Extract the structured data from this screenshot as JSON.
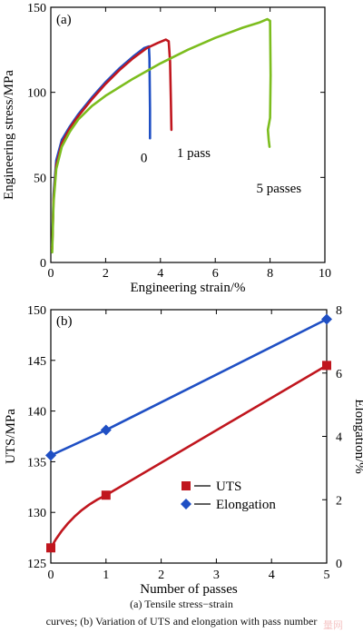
{
  "caption": {
    "line1": "(a) Tensile stress−strain",
    "line2": "curves; (b) Variation of UTS and elongation with pass number"
  },
  "watermark": "量网",
  "colors": {
    "blue": "#1f4fc4",
    "red": "#c0161e",
    "green": "#7cbd1e"
  },
  "chart_data": [
    {
      "type": "line",
      "panel_label": "(a)",
      "xlabel": "Engineering strain/%",
      "ylabel": "Engineering stress/MPa",
      "xlim": [
        0,
        10
      ],
      "ylim": [
        0,
        150
      ],
      "xticks": [
        "0",
        "2",
        "4",
        "6",
        "8",
        "10"
      ],
      "yticks": [
        "0",
        "50",
        "100",
        "150"
      ],
      "series": [
        {
          "name": "0",
          "color": "#1f4fc4",
          "x": [
            0.05,
            0.1,
            0.2,
            0.4,
            0.7,
            1.0,
            1.5,
            2.0,
            2.5,
            3.0,
            3.4,
            3.58,
            3.6,
            3.62,
            3.62
          ],
          "y": [
            10,
            40,
            60,
            72,
            80,
            87,
            97,
            106,
            114,
            121,
            126,
            127,
            120,
            90,
            73
          ]
        },
        {
          "name": "1 pass",
          "color": "#c0161e",
          "x": [
            0.05,
            0.1,
            0.2,
            0.4,
            0.7,
            1.0,
            1.5,
            2.0,
            2.5,
            3.0,
            3.5,
            3.9,
            4.2,
            4.3,
            4.35,
            4.38,
            4.4
          ],
          "y": [
            8,
            37,
            57,
            70,
            79,
            86,
            96,
            105,
            113,
            120,
            126,
            129,
            131,
            130,
            118,
            95,
            78
          ]
        },
        {
          "name": "5 passes",
          "color": "#7cbd1e",
          "x": [
            0.05,
            0.1,
            0.2,
            0.4,
            0.7,
            1.0,
            1.5,
            2.0,
            3.0,
            4.0,
            5.0,
            6.0,
            7.0,
            7.6,
            7.9,
            8.0,
            8.02,
            8.0,
            7.92,
            7.95,
            7.98
          ],
          "y": [
            6,
            35,
            55,
            68,
            77,
            84,
            92,
            98,
            108,
            117,
            125,
            132,
            138,
            141,
            143,
            142,
            110,
            85,
            78,
            72,
            68
          ]
        }
      ]
    },
    {
      "type": "line",
      "panel_label": "(b)",
      "xlabel": "Number of passes",
      "ylabel": "UTS/MPa",
      "y2label": "Elongation/%",
      "xlim": [
        0,
        5
      ],
      "ylim": [
        125,
        150
      ],
      "y2lim": [
        0,
        8
      ],
      "xticks": [
        "0",
        "1",
        "2",
        "3",
        "4",
        "5"
      ],
      "yticks": [
        "125",
        "130",
        "135",
        "140",
        "145",
        "150"
      ],
      "y2ticks": [
        "0",
        "2",
        "4",
        "6",
        "8"
      ],
      "legend_position": "lower-right",
      "series": [
        {
          "name": "UTS",
          "marker": "square",
          "axis": "left",
          "color": "#c0161e",
          "x": [
            0,
            1,
            5
          ],
          "y": [
            126.5,
            131.7,
            144.5
          ]
        },
        {
          "name": "Elongation",
          "marker": "diamond",
          "axis": "right",
          "color": "#1f4fc4",
          "x": [
            0,
            1,
            5
          ],
          "y": [
            3.4,
            4.2,
            7.7
          ]
        }
      ]
    }
  ]
}
